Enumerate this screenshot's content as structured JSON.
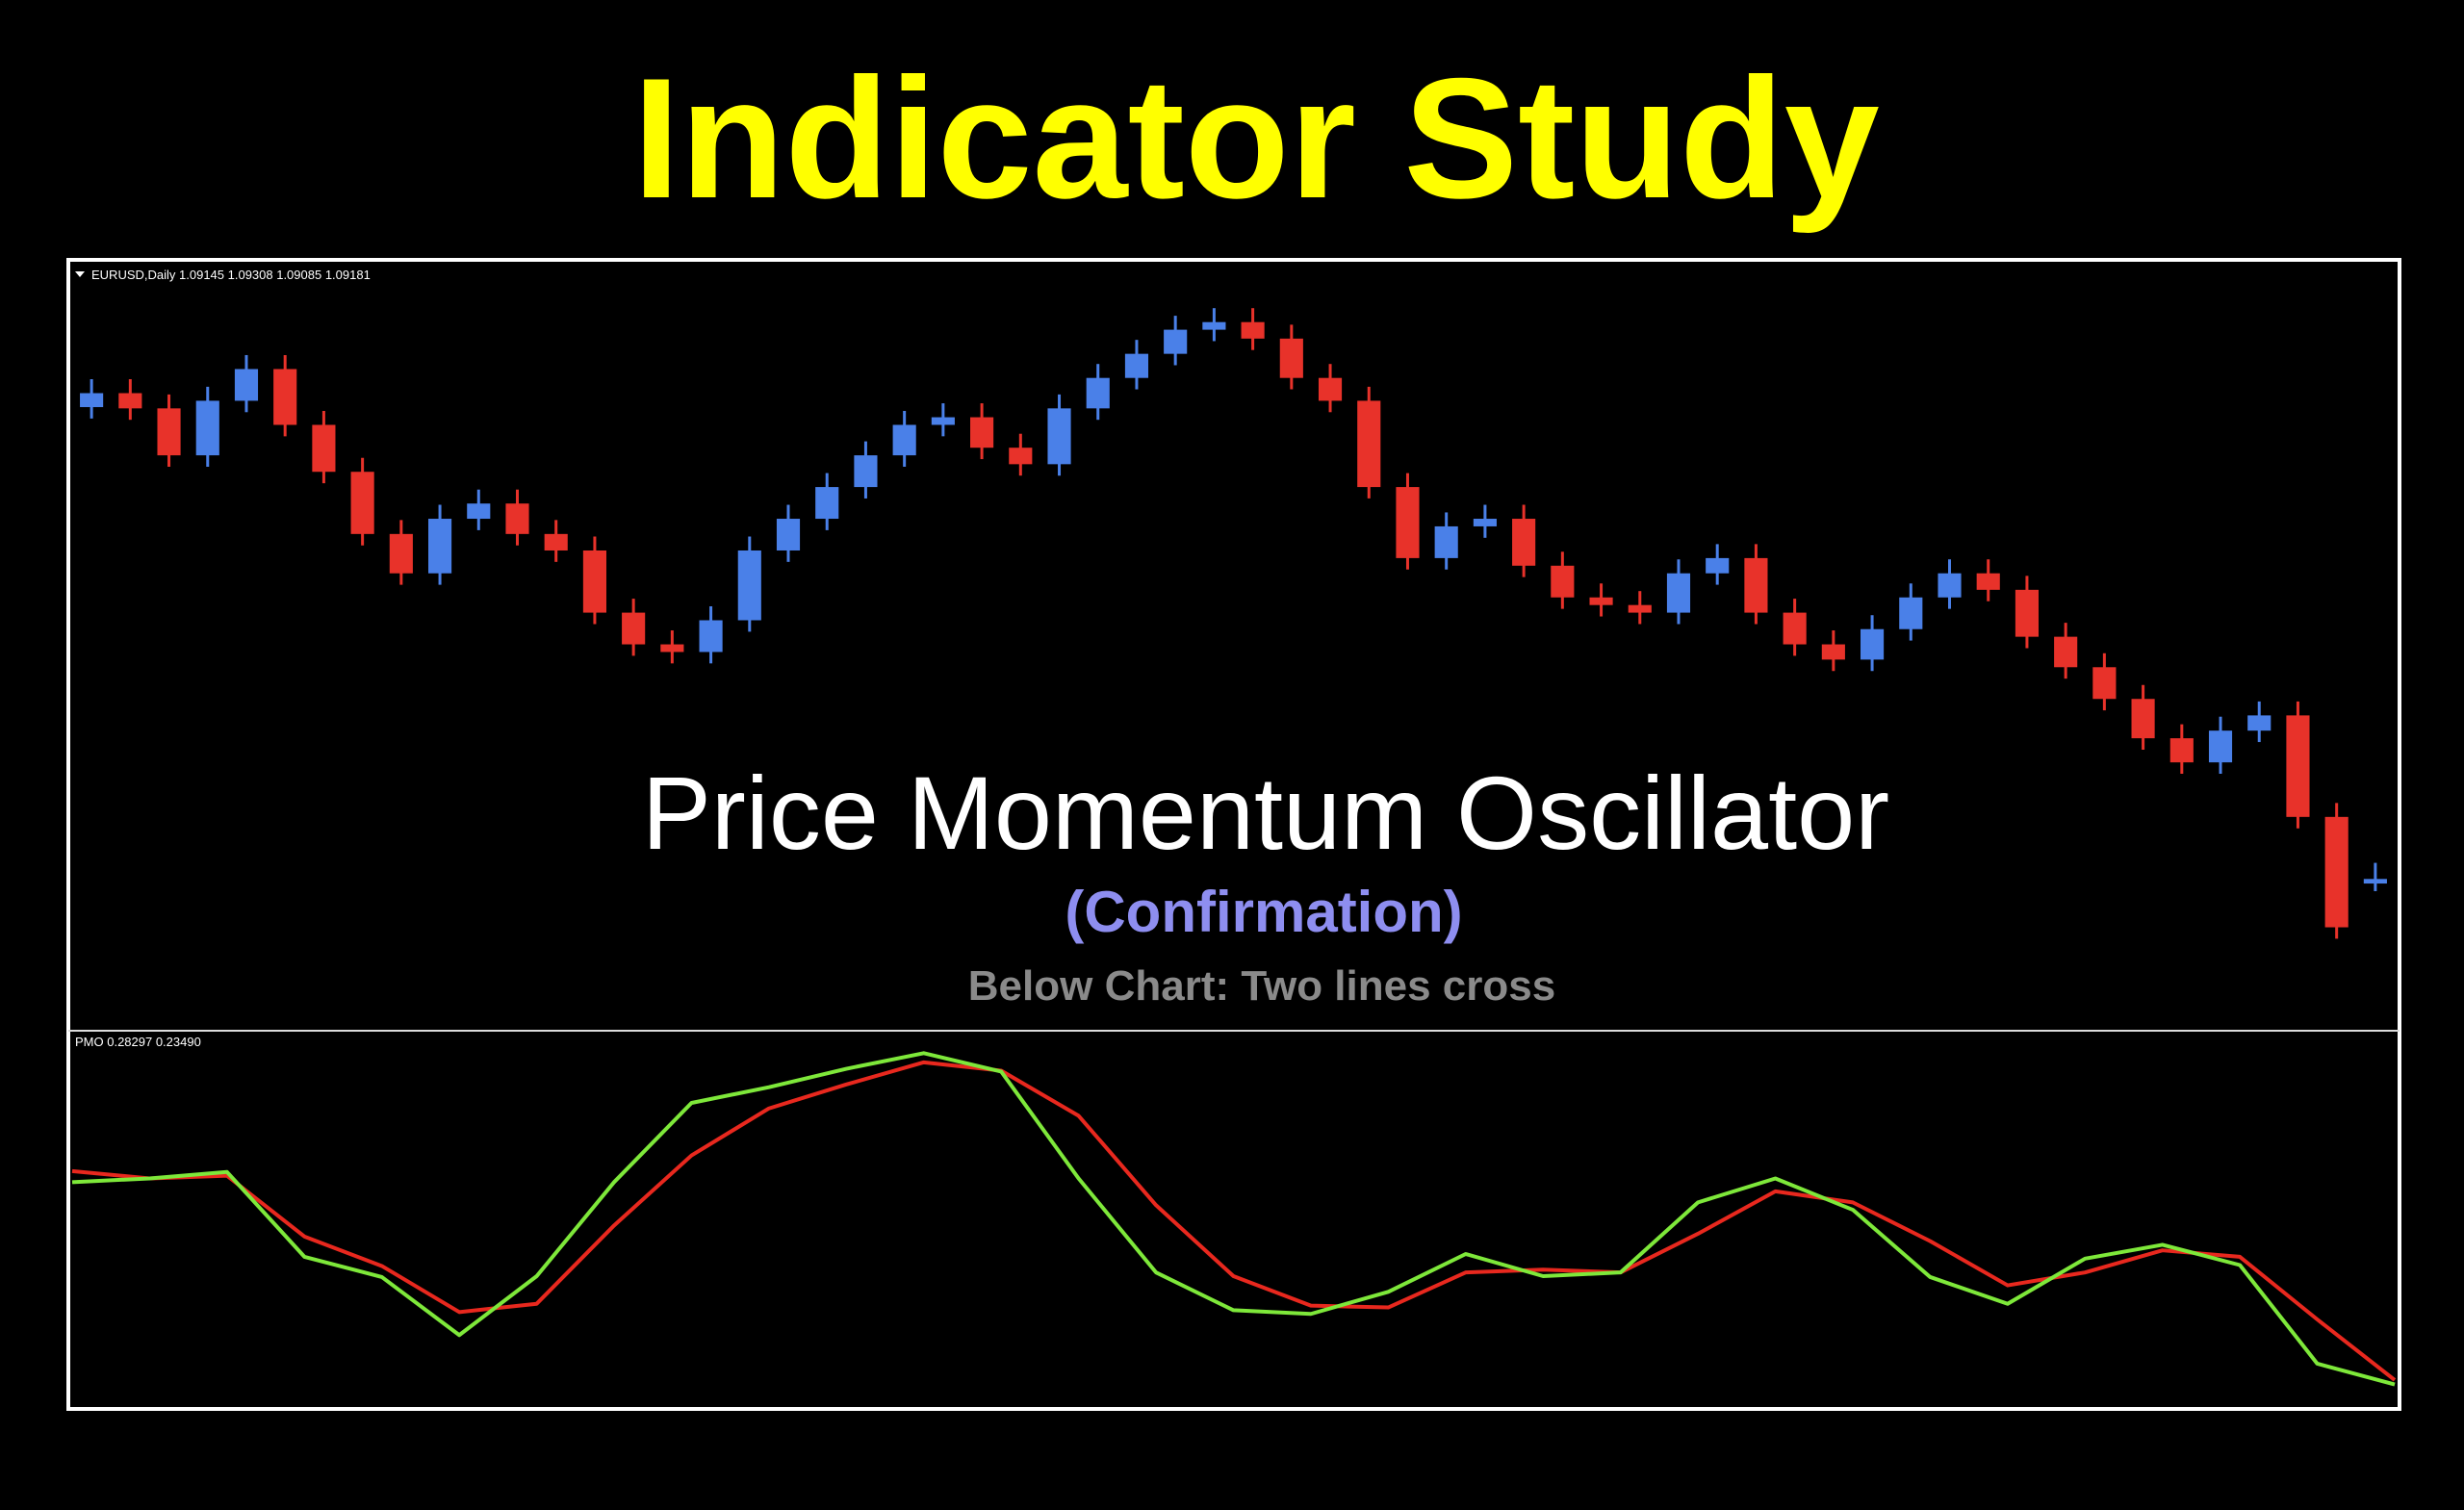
{
  "title": "Indicator Study",
  "overlay": {
    "heading": "Price Momentum Oscillator",
    "subheading": "(Confirmation)",
    "note": "Below Chart: Two lines cross"
  },
  "chart_data": [
    {
      "type": "candlestick",
      "header": "EURUSD,Daily  1.09145 1.09308 1.09085 1.09181",
      "up_color": "#4a80e8",
      "down_color": "#e8322a",
      "ylim": [
        1.08,
        1.14
      ],
      "open": [
        1.129,
        1.1301,
        1.1289,
        1.1252,
        1.1295,
        1.132,
        1.1276,
        1.1239,
        1.119,
        1.1159,
        1.1202,
        1.1214,
        1.119,
        1.1177,
        1.1128,
        1.1103,
        1.1097,
        1.1122,
        1.1177,
        1.1202,
        1.1227,
        1.1252,
        1.1276,
        1.1282,
        1.1258,
        1.1245,
        1.1289,
        1.1313,
        1.1332,
        1.1351,
        1.1357,
        1.1344,
        1.1313,
        1.1295,
        1.1227,
        1.1171,
        1.1196,
        1.1202,
        1.1165,
        1.114,
        1.1134,
        1.1128,
        1.1159,
        1.1171,
        1.1128,
        1.1103,
        1.1091,
        1.1115,
        1.114,
        1.1159,
        1.1146,
        1.1109,
        1.1085,
        1.106,
        1.1029,
        1.101,
        1.1035,
        1.1047,
        1.0967,
        1.09145
      ],
      "high": [
        1.1312,
        1.1312,
        1.13,
        1.1306,
        1.1331,
        1.1331,
        1.1287,
        1.125,
        1.1201,
        1.1213,
        1.1225,
        1.1225,
        1.1201,
        1.1188,
        1.1139,
        1.1114,
        1.1133,
        1.1188,
        1.1213,
        1.1238,
        1.1263,
        1.1287,
        1.1293,
        1.1293,
        1.1269,
        1.13,
        1.1324,
        1.1343,
        1.1362,
        1.1368,
        1.1368,
        1.1355,
        1.1324,
        1.1306,
        1.1238,
        1.1207,
        1.1213,
        1.1213,
        1.1176,
        1.1151,
        1.1145,
        1.117,
        1.1182,
        1.1182,
        1.1139,
        1.1114,
        1.1126,
        1.1151,
        1.117,
        1.117,
        1.1157,
        1.112,
        1.1096,
        1.1071,
        1.104,
        1.1046,
        1.1058,
        1.1058,
        1.0978,
        1.09308
      ],
      "low": [
        1.1281,
        1.128,
        1.1243,
        1.1243,
        1.1286,
        1.1267,
        1.123,
        1.1181,
        1.115,
        1.115,
        1.1193,
        1.1181,
        1.1168,
        1.1119,
        1.1094,
        1.1088,
        1.1088,
        1.1113,
        1.1168,
        1.1193,
        1.1218,
        1.1243,
        1.1267,
        1.1249,
        1.1236,
        1.1236,
        1.128,
        1.1304,
        1.1323,
        1.1342,
        1.1335,
        1.1304,
        1.1286,
        1.1218,
        1.1162,
        1.1162,
        1.1187,
        1.1156,
        1.1131,
        1.1125,
        1.1119,
        1.1119,
        1.115,
        1.1119,
        1.1094,
        1.1082,
        1.1082,
        1.1106,
        1.1131,
        1.1137,
        1.11,
        1.1076,
        1.1051,
        1.102,
        1.1001,
        1.1001,
        1.1026,
        1.0958,
        1.0871,
        1.09085
      ],
      "close": [
        1.1301,
        1.1289,
        1.1252,
        1.1295,
        1.132,
        1.1276,
        1.1239,
        1.119,
        1.1159,
        1.1202,
        1.1214,
        1.119,
        1.1177,
        1.1128,
        1.1103,
        1.1097,
        1.1122,
        1.1177,
        1.1202,
        1.1227,
        1.1252,
        1.1276,
        1.1282,
        1.1258,
        1.1245,
        1.1289,
        1.1313,
        1.1332,
        1.1351,
        1.1357,
        1.1344,
        1.1313,
        1.1295,
        1.1227,
        1.1171,
        1.1196,
        1.1202,
        1.1165,
        1.114,
        1.1134,
        1.1128,
        1.1159,
        1.1171,
        1.1128,
        1.1103,
        1.1091,
        1.1115,
        1.114,
        1.1159,
        1.1146,
        1.1109,
        1.1085,
        1.106,
        1.1029,
        1.101,
        1.1035,
        1.1047,
        1.0967,
        1.088,
        1.09181
      ]
    },
    {
      "type": "line",
      "header": "PMO 0.28297 0.23490",
      "ylim": [
        0,
        4
      ],
      "series": [
        {
          "color": "#e8281e",
          "values": [
            2.55,
            2.47,
            2.5,
            1.84,
            1.52,
            1.02,
            1.11,
            1.96,
            2.72,
            3.23,
            3.49,
            3.73,
            3.64,
            3.15,
            2.18,
            1.41,
            1.09,
            1.07,
            1.45,
            1.48,
            1.45,
            1.87,
            2.33,
            2.21,
            1.79,
            1.31,
            1.45,
            1.69,
            1.62,
            0.94,
            0.28297
          ]
        },
        {
          "color": "#7ee83a",
          "values": [
            2.43,
            2.47,
            2.54,
            1.62,
            1.4,
            0.77,
            1.41,
            2.43,
            3.29,
            3.46,
            3.66,
            3.83,
            3.63,
            2.47,
            1.45,
            1.04,
            1.0,
            1.24,
            1.65,
            1.41,
            1.45,
            2.21,
            2.47,
            2.13,
            1.4,
            1.11,
            1.6,
            1.75,
            1.53,
            0.46,
            0.2349
          ]
        }
      ]
    }
  ]
}
